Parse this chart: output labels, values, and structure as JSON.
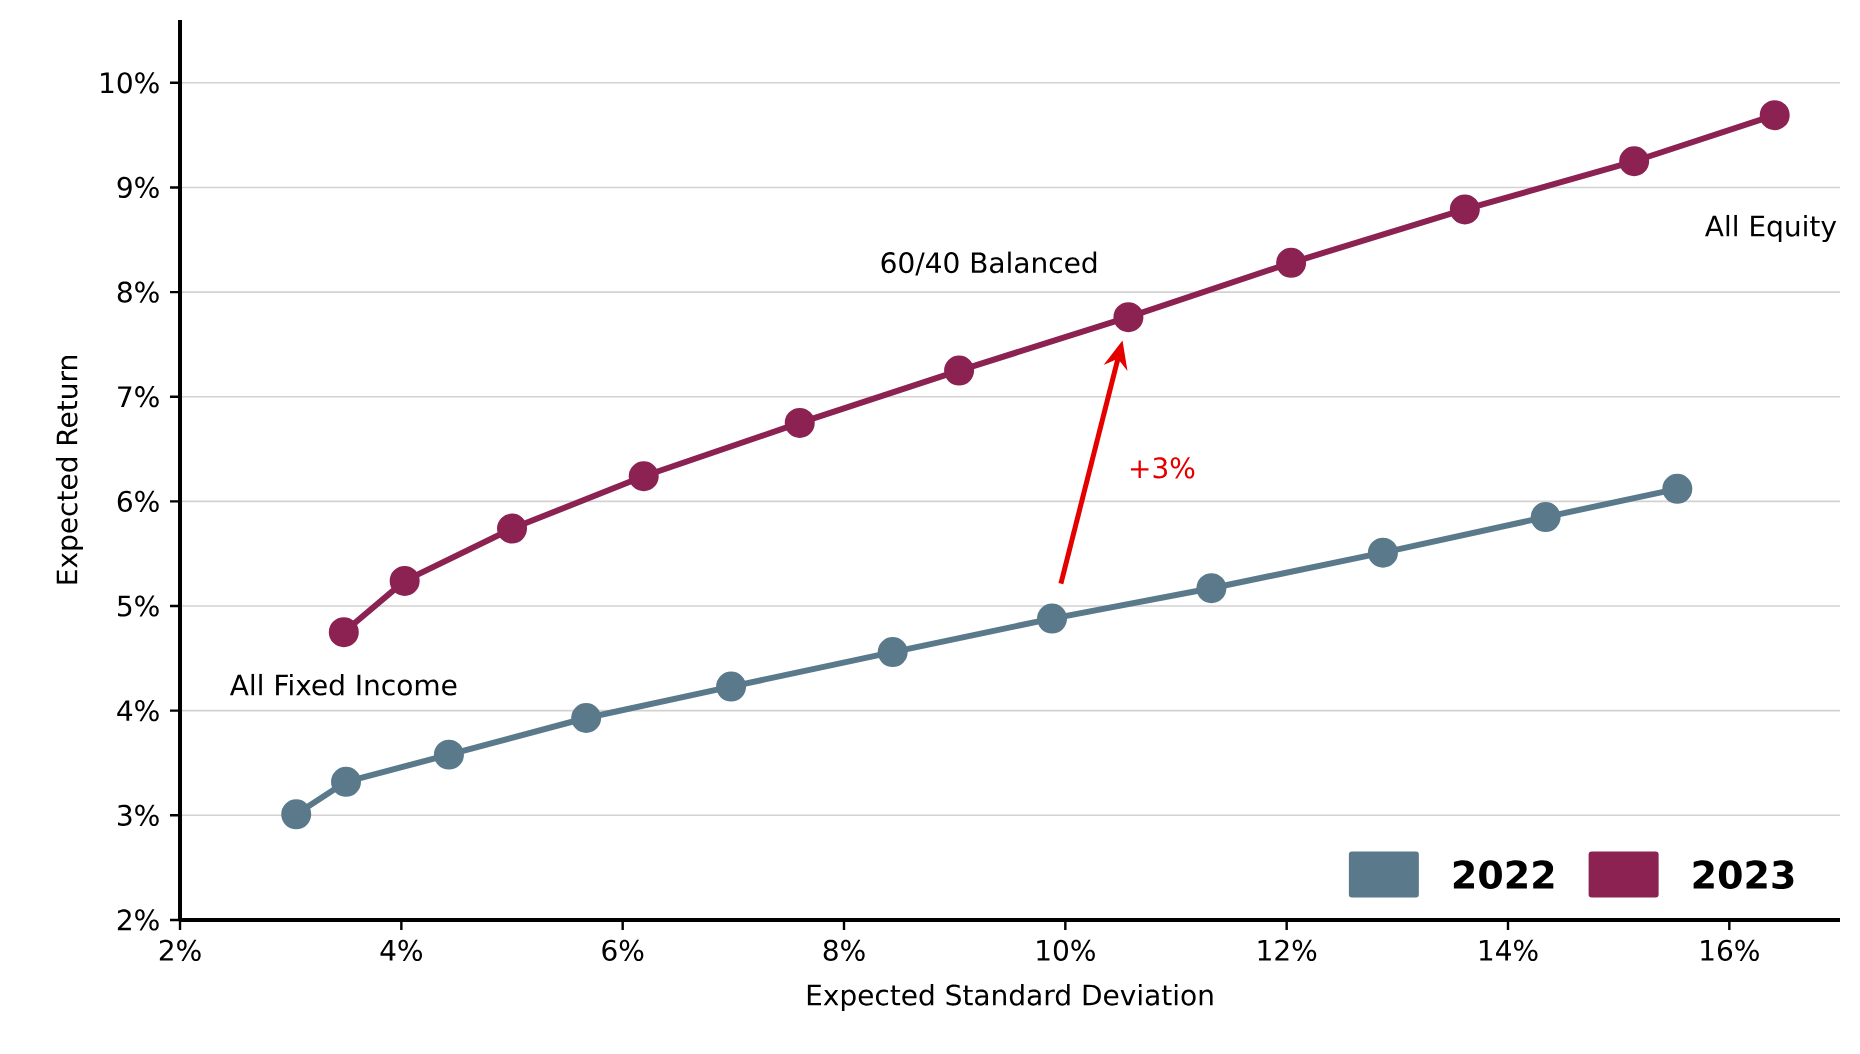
{
  "chart_data": {
    "type": "line",
    "xlabel": "Expected Standard Deviation",
    "ylabel": "Expected Return",
    "series": [
      {
        "name": "2022",
        "color": "#5a7a8c",
        "x": [
          3.05,
          3.5,
          4.43,
          5.67,
          6.98,
          8.44,
          9.88,
          11.32,
          12.87,
          14.34,
          15.53
        ],
        "values": [
          3.01,
          3.32,
          3.58,
          3.93,
          4.23,
          4.56,
          4.88,
          5.17,
          5.51,
          5.85,
          6.12
        ]
      },
      {
        "name": "2023",
        "color": "#8b2252",
        "x": [
          3.48,
          4.03,
          5.0,
          6.19,
          7.6,
          9.04,
          10.57,
          12.04,
          13.61,
          15.14,
          16.41
        ],
        "values": [
          4.75,
          5.24,
          5.74,
          6.24,
          6.75,
          7.25,
          7.76,
          8.28,
          8.79,
          9.25,
          9.69
        ]
      }
    ],
    "xlim": [
      2,
      17
    ],
    "ylim": [
      2,
      10.6
    ],
    "xticks": [
      {
        "value": 2,
        "label": "2%"
      },
      {
        "value": 4,
        "label": "4%"
      },
      {
        "value": 6,
        "label": "6%"
      },
      {
        "value": 8,
        "label": "8%"
      },
      {
        "value": 10,
        "label": "10%"
      },
      {
        "value": 12,
        "label": "12%"
      },
      {
        "value": 14,
        "label": "14%"
      },
      {
        "value": 16,
        "label": "16%"
      }
    ],
    "yticks": [
      {
        "value": 2,
        "label": "2%"
      },
      {
        "value": 3,
        "label": "3%"
      },
      {
        "value": 4,
        "label": "4%"
      },
      {
        "value": 5,
        "label": "5%"
      },
      {
        "value": 6,
        "label": "6%"
      },
      {
        "value": 7,
        "label": "7%"
      },
      {
        "value": 8,
        "label": "8%"
      },
      {
        "value": 9,
        "label": "9%"
      },
      {
        "value": 10,
        "label": "10%"
      }
    ],
    "grid": "y",
    "marker": "circle",
    "line_style": "solid",
    "legend": "bottom right",
    "annotations": [
      {
        "text": "All Fixed Income",
        "x": 3.48,
        "y": 4.75
      },
      {
        "text": "60/40 Balanced",
        "x": 10.57,
        "y": 7.76
      },
      "All Equity",
      "+3%"
    ]
  }
}
